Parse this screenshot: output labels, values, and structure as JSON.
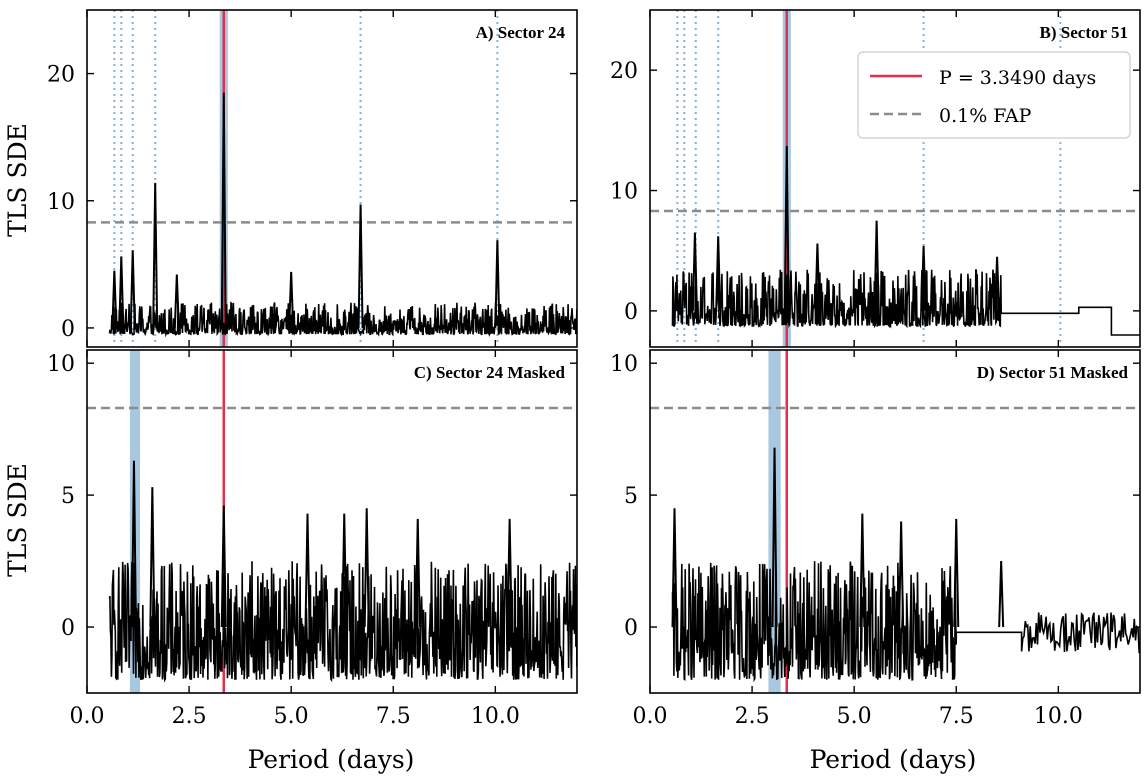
{
  "chart_data": {
    "type": "line",
    "x_label": "Period (days)",
    "y_label": "TLS SDE",
    "x_range": [
      0,
      12
    ],
    "x_ticks": [
      "0.0",
      "2.5",
      "5.0",
      "7.5",
      "10.0"
    ],
    "fap_level": 8.3,
    "legend": {
      "location": "top-right",
      "entries": [
        {
          "label": "P  = 3.3490 days",
          "style": "solid",
          "color": "#e0304e"
        },
        {
          "label": "0.1% FAP",
          "style": "dashed",
          "color": "#8c8c8c"
        }
      ]
    },
    "colors": {
      "signal_line": "#e0304e",
      "fap_line": "#8c8c8c",
      "highlight_band": "#a8c8e0",
      "alias_line": "#7fb3d8",
      "periodogram": "#000000"
    },
    "panels": [
      {
        "id": "A",
        "title": "A) Sector 24",
        "ylim": [
          -1.5,
          25
        ],
        "y_ticks": [
          "0",
          "10",
          "20"
        ],
        "y_tick_values": [
          0,
          10,
          20
        ],
        "signal_period": 3.349,
        "band": [
          3.25,
          3.45
        ],
        "aliases": [
          0.67,
          0.84,
          1.12,
          1.67,
          6.7,
          10.05
        ],
        "period_start": 0.55,
        "period_end": 12.0,
        "peaks": [
          {
            "x": 0.67,
            "y": 4.5
          },
          {
            "x": 0.84,
            "y": 5.6
          },
          {
            "x": 1.12,
            "y": 6.1
          },
          {
            "x": 1.67,
            "y": 11.4
          },
          {
            "x": 2.2,
            "y": 4.2
          },
          {
            "x": 3.349,
            "y": 18.5
          },
          {
            "x": 5.0,
            "y": 4.4
          },
          {
            "x": 6.7,
            "y": 9.7
          },
          {
            "x": 10.05,
            "y": 6.9
          }
        ],
        "noise": {
          "min": -1.0,
          "max": 2.0
        }
      },
      {
        "id": "B",
        "title": "B) Sector 51",
        "ylim": [
          -3,
          25
        ],
        "y_ticks": [
          "0",
          "10",
          "20"
        ],
        "y_tick_values": [
          0,
          10,
          20
        ],
        "signal_period": 3.349,
        "band": [
          3.25,
          3.45
        ],
        "aliases": [
          0.67,
          0.84,
          1.12,
          1.67,
          6.7,
          10.05
        ],
        "period_start": 0.55,
        "period_end": 12.0,
        "peaks": [
          {
            "x": 1.1,
            "y": 6.5
          },
          {
            "x": 1.67,
            "y": 6.2
          },
          {
            "x": 3.349,
            "y": 13.7
          },
          {
            "x": 4.1,
            "y": 5.6
          },
          {
            "x": 5.55,
            "y": 7.5
          },
          {
            "x": 6.7,
            "y": 5.4
          },
          {
            "x": 8.5,
            "y": 4.5
          }
        ],
        "noise": {
          "min": -2.5,
          "max": 3.5
        },
        "flat_segments": [
          {
            "x0": 8.6,
            "x1": 10.5,
            "y": -0.2
          },
          {
            "x0": 10.5,
            "x1": 11.3,
            "y": 0.3
          },
          {
            "x0": 11.3,
            "x1": 12.0,
            "y": -2.0
          }
        ]
      },
      {
        "id": "C",
        "title": "C) Sector 24 Masked",
        "ylim": [
          -2.5,
          10.5
        ],
        "y_ticks": [
          "0",
          "5",
          "10"
        ],
        "y_tick_values": [
          0,
          5,
          10
        ],
        "signal_period": 3.349,
        "band": [
          1.05,
          1.3
        ],
        "aliases": [],
        "period_start": 0.55,
        "period_end": 12.0,
        "peaks": [
          {
            "x": 1.15,
            "y": 6.3
          },
          {
            "x": 1.6,
            "y": 5.3
          },
          {
            "x": 3.349,
            "y": 4.6
          },
          {
            "x": 5.4,
            "y": 4.3
          },
          {
            "x": 6.3,
            "y": 4.3
          },
          {
            "x": 6.85,
            "y": 4.5
          },
          {
            "x": 8.1,
            "y": 4.1
          },
          {
            "x": 10.35,
            "y": 4.1
          }
        ],
        "noise": {
          "min": -2.0,
          "max": 2.5
        }
      },
      {
        "id": "D",
        "title": "D) Sector 51 Masked",
        "ylim": [
          -2.5,
          10.5
        ],
        "y_ticks": [
          "0",
          "5",
          "10"
        ],
        "y_tick_values": [
          0,
          5,
          10
        ],
        "signal_period": 3.349,
        "band": [
          2.9,
          3.2
        ],
        "aliases": [],
        "period_start": 0.55,
        "period_end": 12.0,
        "peaks": [
          {
            "x": 0.6,
            "y": 4.5
          },
          {
            "x": 3.05,
            "y": 6.8
          },
          {
            "x": 5.2,
            "y": 4.3
          },
          {
            "x": 6.15,
            "y": 4.0
          },
          {
            "x": 7.5,
            "y": 4.1
          },
          {
            "x": 8.6,
            "y": 2.5
          }
        ],
        "noise": {
          "min": -2.0,
          "max": 2.5
        },
        "flat_segments": [
          {
            "x0": 7.5,
            "x1": 9.1,
            "y": -0.2
          }
        ],
        "tail": {
          "x0": 9.1,
          "x1": 12.0,
          "min": -1.0,
          "max": 0.6
        }
      }
    ]
  }
}
